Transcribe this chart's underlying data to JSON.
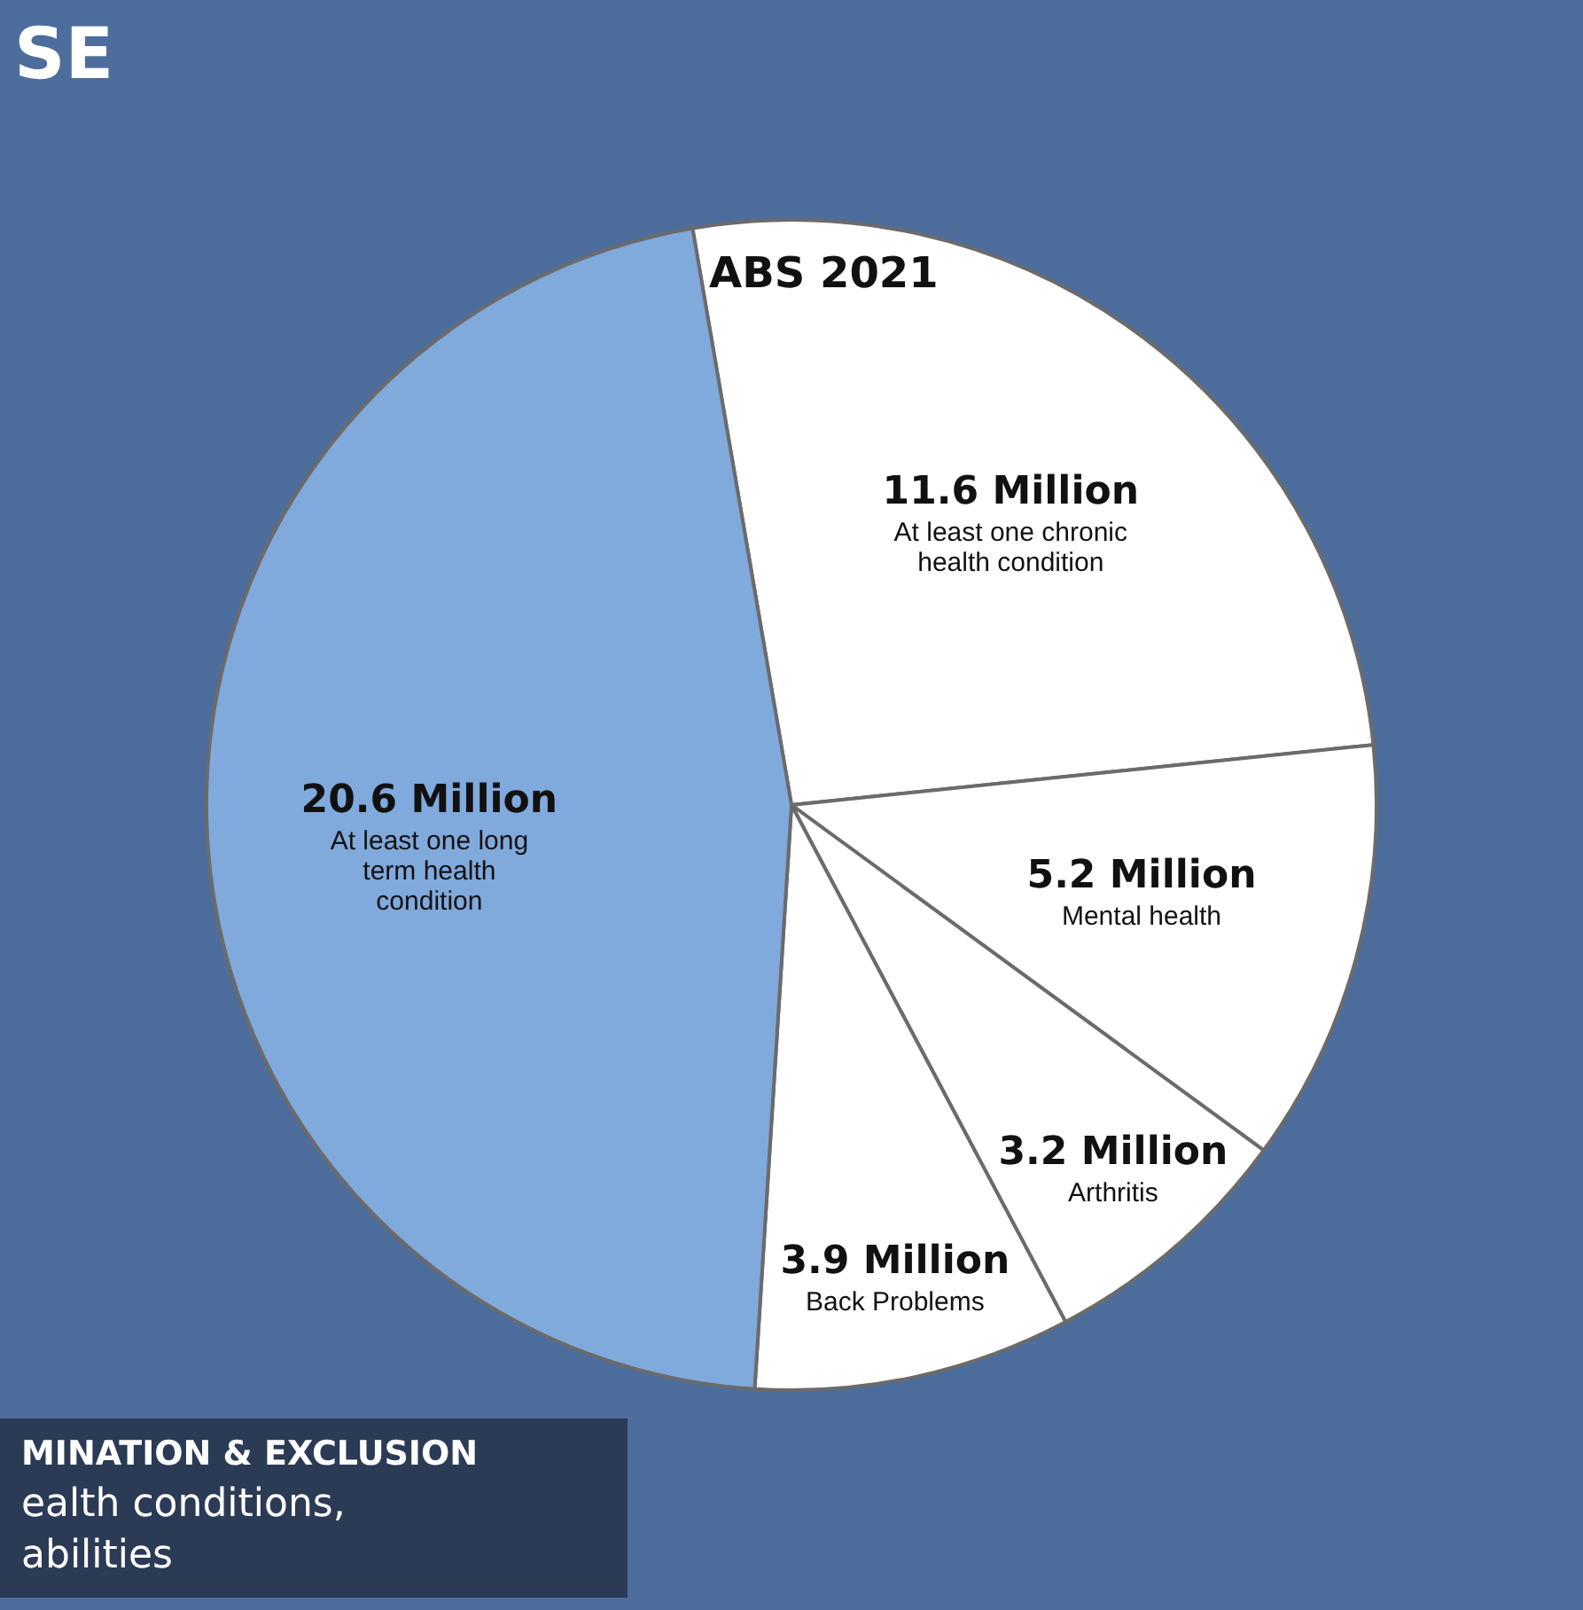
{
  "chart_data": {
    "type": "pie",
    "categories": [
      "At least one chronic health condition",
      "Mental health",
      "Arthritis",
      "Back Problems",
      "At least one long term health condition"
    ],
    "values": [
      11.6,
      5.2,
      3.2,
      3.9,
      20.6
    ],
    "value_labels": [
      "11.6 Million",
      "5.2 Million",
      "3.2 Million",
      "3.9 Million",
      "20.6 Million"
    ],
    "colors": [
      "#ffffff",
      "#ffffff",
      "#ffffff",
      "#ffffff",
      "#80a9dc"
    ],
    "annotations": [
      "SE",
      "ABS 2021",
      "MINATION & EXCLUSION",
      "ealth conditions,",
      "abilities"
    ],
    "legend": false
  }
}
